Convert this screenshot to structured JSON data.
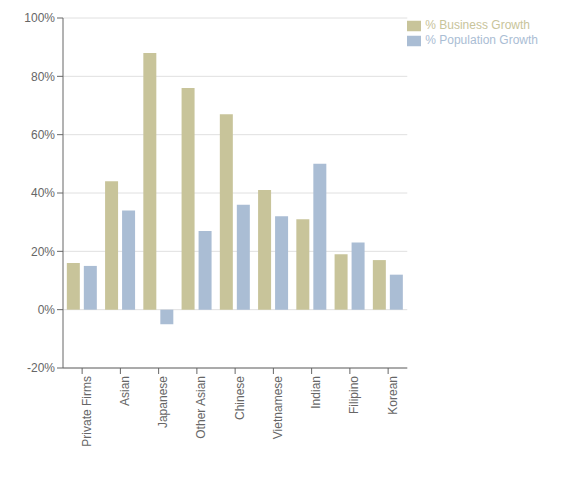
{
  "chart_data": {
    "type": "bar",
    "categories": [
      "Private Firms",
      "Asian",
      "Japanese",
      "Other Asian",
      "Chinese",
      "Vietnamese",
      "Indian",
      "Filipino",
      "Korean"
    ],
    "series": [
      {
        "name": "% Business Growth",
        "color": "#C8C49A",
        "values": [
          16,
          44,
          88,
          76,
          67,
          41,
          31,
          19,
          17
        ]
      },
      {
        "name": "% Population Growth",
        "color": "#AABDD4",
        "values": [
          15,
          34,
          -5,
          27,
          36,
          32,
          50,
          23,
          12
        ]
      }
    ],
    "ylim": [
      -20,
      100
    ],
    "yticks": [
      {
        "value": -20,
        "label": "-20%"
      },
      {
        "value": 0,
        "label": "0%"
      },
      {
        "value": 20,
        "label": "20%"
      },
      {
        "value": 40,
        "label": "40%"
      },
      {
        "value": 60,
        "label": "60%"
      },
      {
        "value": 80,
        "label": "80%"
      },
      {
        "value": 100,
        "label": "100%"
      }
    ],
    "grid": true,
    "legend": "upper right"
  }
}
